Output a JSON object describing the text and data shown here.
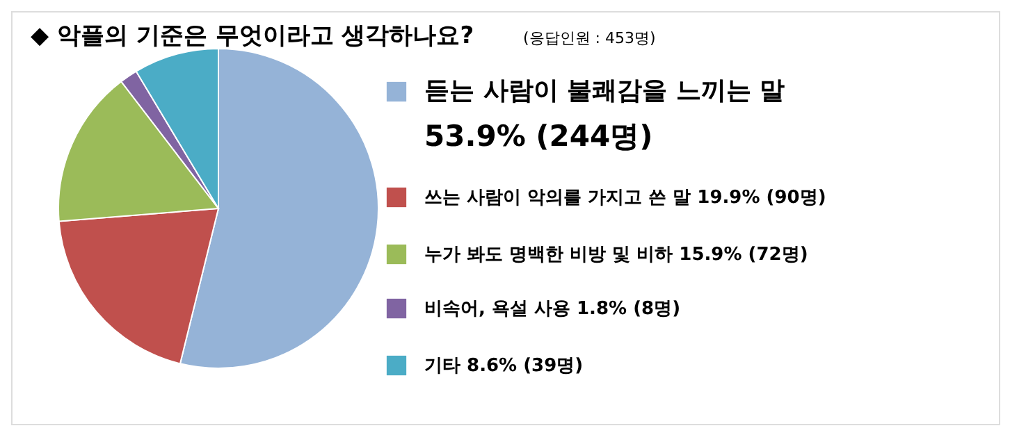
{
  "chart_data": {
    "type": "pie",
    "title": "◆ 악플의 기준은 무엇이라고 생각하나요?",
    "subtitle": "(응답인원 : 453명)",
    "categories": [
      "듣는 사람이 불쾌감을 느끼는 말",
      "쓰는 사람이 악의를 가지고 쓴 말",
      "누가 봐도 명백한 비방 및 비하",
      "비속어, 욕설 사용",
      "기타"
    ],
    "values": [
      53.9,
      19.9,
      15.9,
      1.8,
      8.6
    ],
    "colors": [
      "#95b3d7",
      "#c0504d",
      "#9bbb59",
      "#8064a2",
      "#4bacc6"
    ],
    "value_labels": [
      "53.9% (244명)",
      "19.9% (90명)",
      "15.9% (72명)",
      "1.8% (8명)",
      "8.6% (39명)"
    ],
    "legend": "right"
  }
}
